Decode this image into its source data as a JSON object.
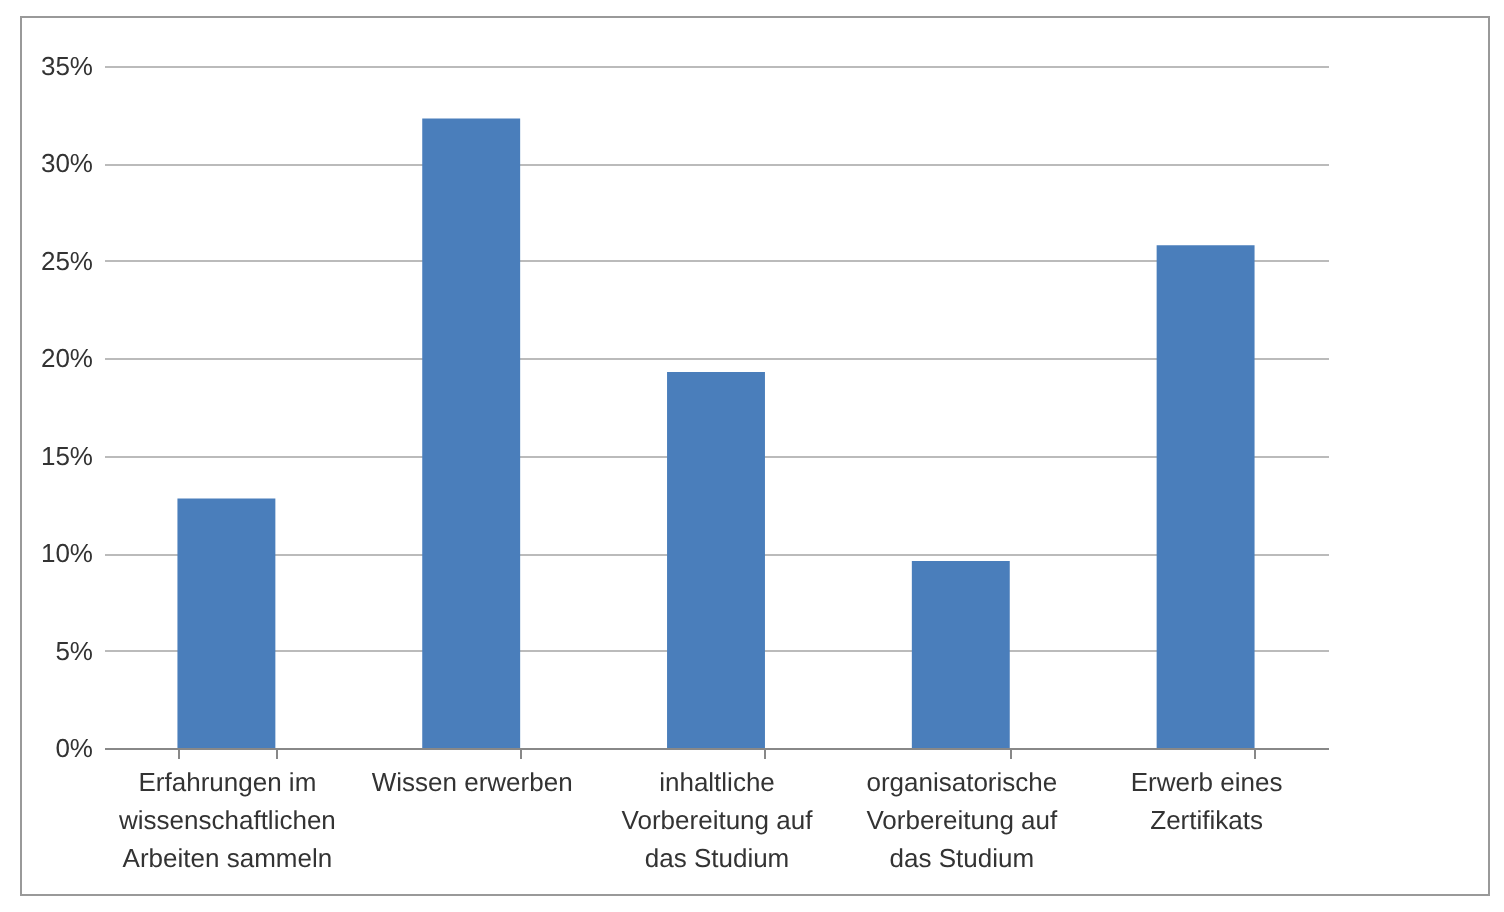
{
  "chart_data": {
    "type": "bar",
    "categories": [
      "Erfahrungen im wissenschaftlichen Arbeiten sammeln",
      "Wissen erwerben",
      "inhaltliche Vorbereitung auf das Studium",
      "organisatorische Vorbereitung auf das Studium",
      "Erwerb eines Zertifikats"
    ],
    "values": [
      12.8,
      32.3,
      19.3,
      9.6,
      25.8
    ],
    "color": "#4a7ebb",
    "ylim": [
      0,
      35
    ],
    "yticks": [
      {
        "value": 0,
        "label": "0%"
      },
      {
        "value": 5,
        "label": "5%"
      },
      {
        "value": 10,
        "label": "10%"
      },
      {
        "value": 15,
        "label": "15%"
      },
      {
        "value": 20,
        "label": "20%"
      },
      {
        "value": 25,
        "label": "25%"
      },
      {
        "value": 30,
        "label": "30%"
      },
      {
        "value": 35,
        "label": "35%"
      }
    ],
    "grid": "y"
  }
}
